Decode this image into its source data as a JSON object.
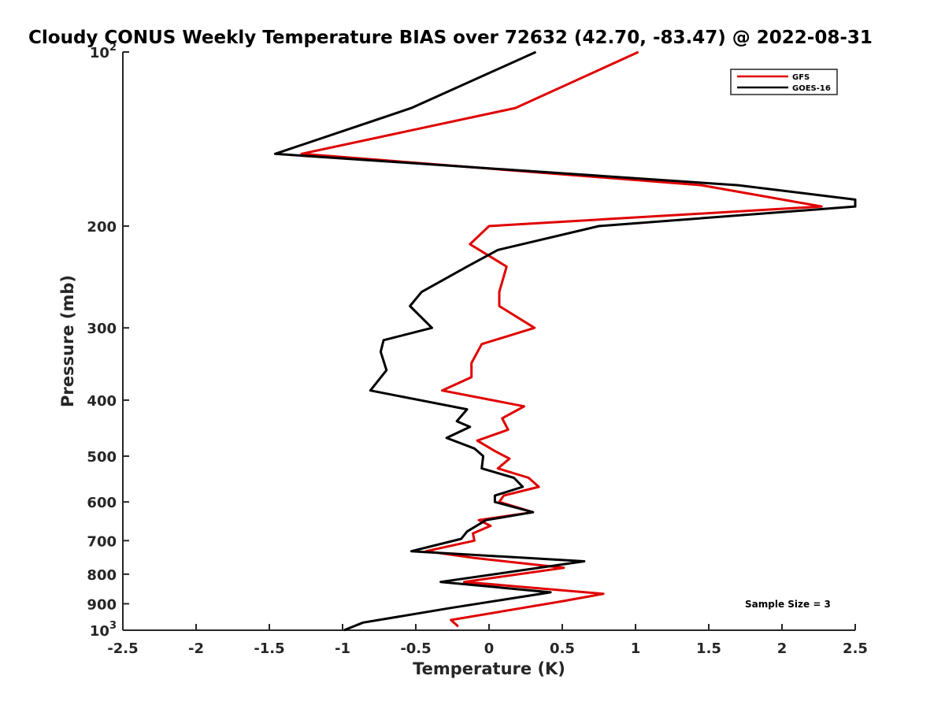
{
  "chart_data": {
    "type": "line",
    "title": "Cloudy CONUS Weekly Temperature BIAS over 72632 (42.70, -83.47) @ 2022-08-31",
    "xlabel": "Temperature (K)",
    "ylabel": "Pressure (mb)",
    "xlim": [
      -2.5,
      2.5
    ],
    "ylim": [
      1000,
      100
    ],
    "y_scale": "log",
    "grid": false,
    "x_ticks": [
      "-2.5",
      "-2",
      "-1.5",
      "-1",
      "-0.5",
      "0",
      "0.5",
      "1",
      "1.5",
      "2",
      "2.5"
    ],
    "y_ticks": [
      {
        "value": 100,
        "base": "10",
        "exp": "2"
      },
      {
        "value": 200,
        "label": "200"
      },
      {
        "value": 300,
        "label": "300"
      },
      {
        "value": 400,
        "label": "400"
      },
      {
        "value": 500,
        "label": "500"
      },
      {
        "value": 600,
        "label": "600"
      },
      {
        "value": 700,
        "label": "700"
      },
      {
        "value": 800,
        "label": "800"
      },
      {
        "value": 900,
        "label": "900"
      },
      {
        "value": 1000,
        "base": "10",
        "exp": "3"
      }
    ],
    "legend": {
      "position": "top-right"
    },
    "annotation": "Sample Size = 3",
    "series": [
      {
        "name": "GFS",
        "color": "#e00000",
        "points": [
          [
            1.02,
            100
          ],
          [
            0.18,
            125
          ],
          [
            -1.28,
            150
          ],
          [
            1.45,
            170
          ],
          [
            2.27,
            185
          ],
          [
            0.0,
            200
          ],
          [
            -0.13,
            215
          ],
          [
            0.12,
            235
          ],
          [
            0.07,
            260
          ],
          [
            0.07,
            275
          ],
          [
            0.31,
            300
          ],
          [
            -0.05,
            320
          ],
          [
            -0.12,
            345
          ],
          [
            -0.12,
            365
          ],
          [
            -0.32,
            385
          ],
          [
            0.24,
            410
          ],
          [
            0.09,
            430
          ],
          [
            0.13,
            450
          ],
          [
            -0.08,
            470
          ],
          [
            0.04,
            490
          ],
          [
            0.14,
            505
          ],
          [
            0.06,
            525
          ],
          [
            0.27,
            545
          ],
          [
            0.34,
            565
          ],
          [
            0.1,
            585
          ],
          [
            0.07,
            600
          ],
          [
            0.3,
            625
          ],
          [
            -0.07,
            645
          ],
          [
            0.01,
            660
          ],
          [
            -0.11,
            680
          ],
          [
            -0.1,
            700
          ],
          [
            -0.43,
            730
          ],
          [
            -0.1,
            750
          ],
          [
            0.51,
            780
          ],
          [
            -0.17,
            825
          ],
          [
            0.78,
            865
          ],
          [
            0.51,
            890
          ],
          [
            -0.26,
            960
          ],
          [
            -0.21,
            985
          ]
        ]
      },
      {
        "name": "GOES-16",
        "color": "#000000",
        "points": [
          [
            0.32,
            100
          ],
          [
            -0.53,
            125
          ],
          [
            -1.46,
            150
          ],
          [
            1.7,
            170
          ],
          [
            2.5,
            180
          ],
          [
            2.5,
            185
          ],
          [
            0.75,
            200
          ],
          [
            0.06,
            220
          ],
          [
            -0.15,
            235
          ],
          [
            -0.46,
            260
          ],
          [
            -0.54,
            275
          ],
          [
            -0.39,
            300
          ],
          [
            -0.72,
            315
          ],
          [
            -0.74,
            330
          ],
          [
            -0.7,
            355
          ],
          [
            -0.81,
            385
          ],
          [
            -0.15,
            415
          ],
          [
            -0.22,
            435
          ],
          [
            -0.13,
            445
          ],
          [
            -0.29,
            465
          ],
          [
            -0.1,
            485
          ],
          [
            -0.04,
            500
          ],
          [
            -0.05,
            525
          ],
          [
            0.17,
            545
          ],
          [
            0.23,
            565
          ],
          [
            0.04,
            585
          ],
          [
            0.04,
            600
          ],
          [
            0.3,
            625
          ],
          [
            -0.02,
            645
          ],
          [
            -0.15,
            675
          ],
          [
            -0.19,
            695
          ],
          [
            -0.53,
            730
          ],
          [
            0.65,
            760
          ],
          [
            -0.33,
            825
          ],
          [
            0.42,
            860
          ],
          [
            -0.26,
            915
          ],
          [
            -0.86,
            970
          ],
          [
            -0.99,
            1000
          ]
        ]
      }
    ]
  }
}
